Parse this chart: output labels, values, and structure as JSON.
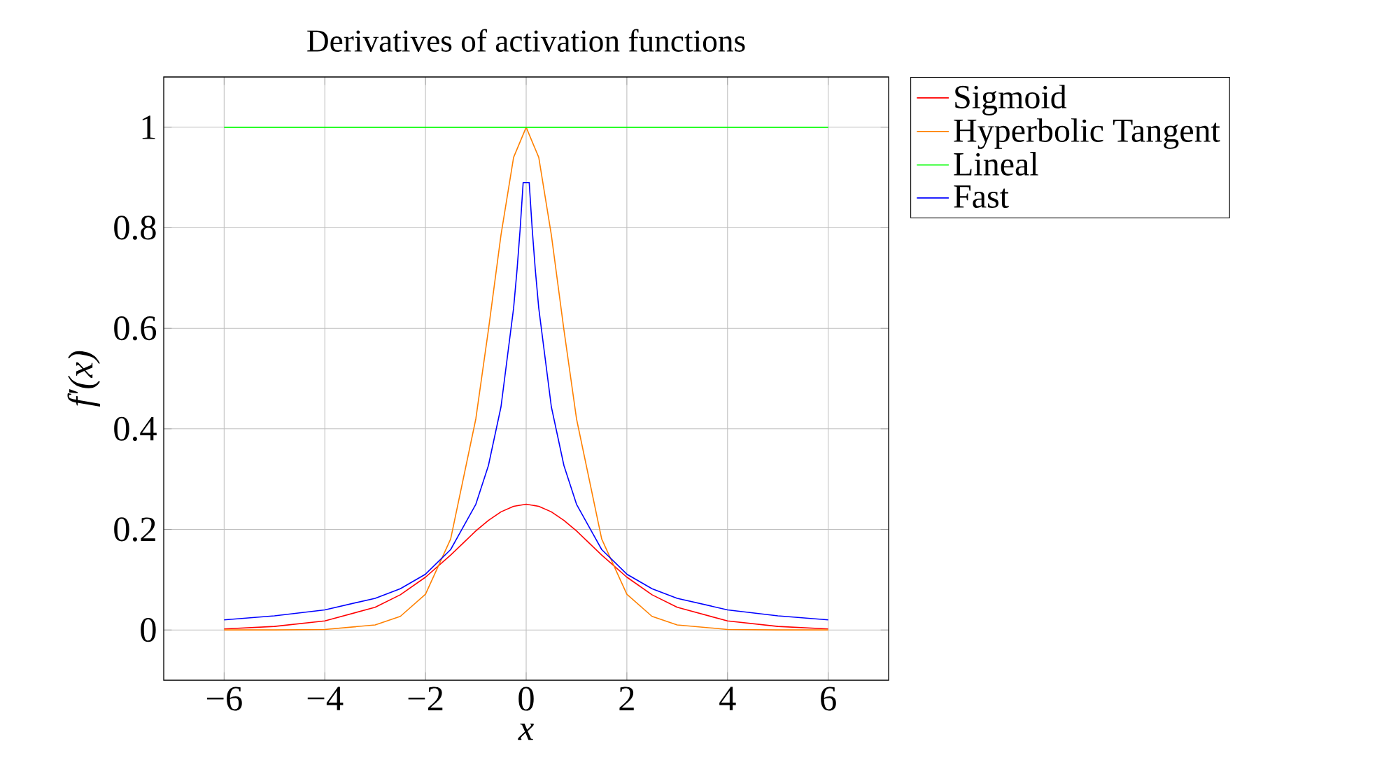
{
  "chart_data": {
    "type": "line",
    "title": "Derivatives of activation functions",
    "xlabel": "x",
    "ylabel": "f′(x)",
    "xlim": [
      -7.2,
      7.2
    ],
    "ylim": [
      -0.1,
      1.1
    ],
    "xticks": [
      {
        "value": -6,
        "label": "−6"
      },
      {
        "value": -4,
        "label": "−4"
      },
      {
        "value": -2,
        "label": "−2"
      },
      0,
      2,
      4,
      6
    ],
    "yticks": [
      0,
      0.2,
      0.4,
      0.6,
      0.8,
      1
    ],
    "grid": true,
    "legend": "top right",
    "marker": "none",
    "line_style": "solid",
    "series": [
      {
        "name": "Sigmoid",
        "color": "#ff0000",
        "x": [
          -6,
          -5,
          -4,
          -3,
          -2.5,
          -2,
          -1.5,
          -1,
          -0.75,
          -0.5,
          -0.25,
          0,
          0.25,
          0.5,
          0.75,
          1,
          1.5,
          2,
          2.5,
          3,
          4,
          5,
          6
        ],
        "values": [
          0.002,
          0.007,
          0.018,
          0.045,
          0.07,
          0.105,
          0.149,
          0.197,
          0.218,
          0.235,
          0.246,
          0.25,
          0.246,
          0.235,
          0.218,
          0.197,
          0.149,
          0.105,
          0.07,
          0.045,
          0.018,
          0.007,
          0.002
        ]
      },
      {
        "name": "Hyperbolic Tangent",
        "color": "#ff8000",
        "x": [
          -6,
          -5,
          -4,
          -3,
          -2.5,
          -2,
          -1.5,
          -1,
          -0.75,
          -0.5,
          -0.25,
          0,
          0.25,
          0.5,
          0.75,
          1,
          1.5,
          2,
          2.5,
          3,
          4,
          5,
          6
        ],
        "values": [
          0,
          0,
          0.001,
          0.01,
          0.027,
          0.071,
          0.181,
          0.42,
          0.597,
          0.786,
          0.94,
          1,
          0.94,
          0.786,
          0.597,
          0.42,
          0.181,
          0.071,
          0.027,
          0.01,
          0.001,
          0,
          0
        ]
      },
      {
        "name": "Lineal",
        "color": "#00ff00",
        "x": [
          -6,
          6
        ],
        "values": [
          1,
          1
        ]
      },
      {
        "name": "Fast",
        "color": "#0000ff",
        "x": [
          -6,
          -5,
          -4,
          -3,
          -2.5,
          -2,
          -1.5,
          -1,
          -0.75,
          -0.5,
          -0.25,
          -0.18,
          -0.12,
          -0.06,
          0.06,
          0.12,
          0.18,
          0.25,
          0.5,
          0.75,
          1,
          1.5,
          2,
          2.5,
          3,
          4,
          5,
          6
        ],
        "values": [
          0.02,
          0.028,
          0.04,
          0.063,
          0.082,
          0.111,
          0.16,
          0.25,
          0.327,
          0.444,
          0.64,
          0.718,
          0.797,
          0.89,
          0.89,
          0.797,
          0.718,
          0.64,
          0.444,
          0.327,
          0.25,
          0.16,
          0.111,
          0.082,
          0.063,
          0.04,
          0.028,
          0.02
        ]
      }
    ]
  }
}
